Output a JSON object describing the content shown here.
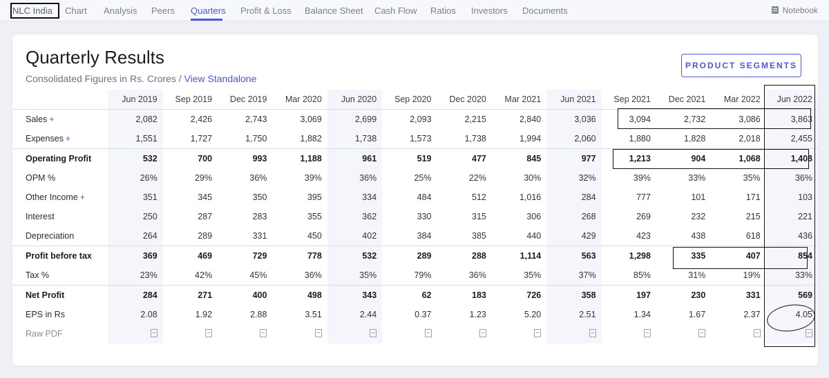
{
  "nav": {
    "brand": "NLC India",
    "items": [
      "Chart",
      "Analysis",
      "Peers",
      "Quarters",
      "Profit & Loss",
      "Balance Sheet",
      "Cash Flow",
      "Ratios",
      "Investors",
      "Documents"
    ],
    "active": "Quarters",
    "notebook": "Notebook"
  },
  "section": {
    "title": "Quarterly Results",
    "subtitle_prefix": "Consolidated Figures in Rs. Crores / ",
    "subtitle_link": "View Standalone",
    "segments_button": "PRODUCT SEGMENTS"
  },
  "table": {
    "periods": [
      "Jun 2019",
      "Sep 2019",
      "Dec 2019",
      "Mar 2020",
      "Jun 2020",
      "Sep 2020",
      "Dec 2020",
      "Mar 2021",
      "Jun 2021",
      "Sep 2021",
      "Dec 2021",
      "Mar 2022",
      "Jun 2022"
    ],
    "rows": [
      {
        "label": "Sales",
        "plus": "+",
        "values": [
          "2,082",
          "2,426",
          "2,743",
          "3,069",
          "2,699",
          "2,093",
          "2,215",
          "2,840",
          "3,036",
          "3,094",
          "2,732",
          "3,086",
          "3,863"
        ]
      },
      {
        "label": "Expenses",
        "plus": "+",
        "values": [
          "1,551",
          "1,727",
          "1,750",
          "1,882",
          "1,738",
          "1,573",
          "1,738",
          "1,994",
          "2,060",
          "1,880",
          "1,828",
          "2,018",
          "2,455"
        ]
      },
      {
        "label": "Operating Profit",
        "bold": true,
        "values": [
          "532",
          "700",
          "993",
          "1,188",
          "961",
          "519",
          "477",
          "845",
          "977",
          "1,213",
          "904",
          "1,068",
          "1,408"
        ]
      },
      {
        "label": "OPM %",
        "values": [
          "26%",
          "29%",
          "36%",
          "39%",
          "36%",
          "25%",
          "22%",
          "30%",
          "32%",
          "39%",
          "33%",
          "35%",
          "36%"
        ]
      },
      {
        "label": "Other Income",
        "plus": "+",
        "values": [
          "351",
          "345",
          "350",
          "395",
          "334",
          "484",
          "512",
          "1,016",
          "284",
          "777",
          "101",
          "171",
          "103"
        ]
      },
      {
        "label": "Interest",
        "values": [
          "250",
          "287",
          "283",
          "355",
          "362",
          "330",
          "315",
          "306",
          "268",
          "269",
          "232",
          "215",
          "221"
        ]
      },
      {
        "label": "Depreciation",
        "values": [
          "264",
          "289",
          "331",
          "450",
          "402",
          "384",
          "385",
          "440",
          "429",
          "423",
          "438",
          "618",
          "436"
        ]
      },
      {
        "label": "Profit before tax",
        "bold": true,
        "values": [
          "369",
          "469",
          "729",
          "778",
          "532",
          "289",
          "288",
          "1,114",
          "563",
          "1,298",
          "335",
          "407",
          "854"
        ]
      },
      {
        "label": "Tax %",
        "values": [
          "23%",
          "42%",
          "45%",
          "36%",
          "35%",
          "79%",
          "36%",
          "35%",
          "37%",
          "85%",
          "31%",
          "19%",
          "33%"
        ]
      },
      {
        "label": "Net Profit",
        "bold": true,
        "values": [
          "284",
          "271",
          "400",
          "498",
          "343",
          "62",
          "183",
          "726",
          "358",
          "197",
          "230",
          "331",
          "569"
        ]
      },
      {
        "label": "EPS in Rs",
        "values": [
          "2.08",
          "1.92",
          "2.88",
          "3.51",
          "2.44",
          "0.37",
          "1.23",
          "5.20",
          "2.51",
          "1.34",
          "1.67",
          "2.37",
          "4.05"
        ]
      },
      {
        "label": "Raw PDF",
        "pdf": true
      }
    ]
  }
}
